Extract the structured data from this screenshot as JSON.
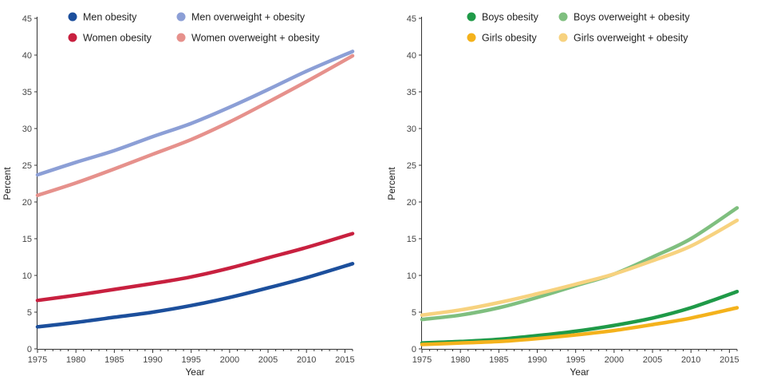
{
  "chart_data": [
    {
      "type": "line",
      "title": "",
      "xlabel": "Year",
      "ylabel": "Percent",
      "xlim": [
        1975,
        2016
      ],
      "ylim": [
        0,
        45
      ],
      "xticks": [
        1975,
        1980,
        1985,
        1990,
        1995,
        2000,
        2005,
        2010,
        2015
      ],
      "yticks": [
        0,
        5,
        10,
        15,
        20,
        25,
        30,
        35,
        40,
        45
      ],
      "grid": false,
      "legend": "top",
      "series": [
        {
          "name": "Men obesity",
          "color": "#1c4f9c",
          "x": [
            1975,
            1980,
            1985,
            1990,
            1995,
            2000,
            2005,
            2010,
            2016
          ],
          "y": [
            3.0,
            3.6,
            4.3,
            5.0,
            5.9,
            7.0,
            8.3,
            9.7,
            11.6
          ]
        },
        {
          "name": "Women obesity",
          "color": "#c8203f",
          "x": [
            1975,
            1980,
            1985,
            1990,
            1995,
            2000,
            2005,
            2010,
            2016
          ],
          "y": [
            6.6,
            7.3,
            8.1,
            8.9,
            9.8,
            11.0,
            12.4,
            13.8,
            15.7
          ]
        },
        {
          "name": "Men overweight + obesity",
          "color": "#8c9fd6",
          "x": [
            1975,
            1980,
            1985,
            1990,
            1995,
            2000,
            2005,
            2010,
            2016
          ],
          "y": [
            23.7,
            25.4,
            27.0,
            28.9,
            30.7,
            32.9,
            35.3,
            37.8,
            40.5
          ]
        },
        {
          "name": "Women overweight + obesity",
          "color": "#e6918c",
          "x": [
            1975,
            1980,
            1985,
            1990,
            1995,
            2000,
            2005,
            2010,
            2016
          ],
          "y": [
            20.9,
            22.6,
            24.5,
            26.5,
            28.5,
            30.9,
            33.6,
            36.4,
            39.9
          ]
        }
      ]
    },
    {
      "type": "line",
      "title": "",
      "xlabel": "Year",
      "ylabel": "Percent",
      "xlim": [
        1975,
        2016
      ],
      "ylim": [
        0,
        45
      ],
      "xticks": [
        1975,
        1980,
        1985,
        1990,
        1995,
        2000,
        2005,
        2010,
        2015
      ],
      "yticks": [
        0,
        5,
        10,
        15,
        20,
        25,
        30,
        35,
        40,
        45
      ],
      "grid": false,
      "legend": "top",
      "series": [
        {
          "name": "Boys obesity",
          "color": "#1f9a48",
          "x": [
            1975,
            1980,
            1985,
            1990,
            1995,
            2000,
            2005,
            2010,
            2016
          ],
          "y": [
            0.8,
            1.0,
            1.3,
            1.8,
            2.4,
            3.2,
            4.2,
            5.6,
            7.8
          ]
        },
        {
          "name": "Girls obesity",
          "color": "#f4b21c",
          "x": [
            1975,
            1980,
            1985,
            1990,
            1995,
            2000,
            2005,
            2010,
            2016
          ],
          "y": [
            0.6,
            0.8,
            1.0,
            1.4,
            1.9,
            2.5,
            3.3,
            4.2,
            5.6
          ]
        },
        {
          "name": "Boys overweight + obesity",
          "color": "#7fbf7f",
          "x": [
            1975,
            1980,
            1985,
            1990,
            1995,
            2000,
            2005,
            2010,
            2016
          ],
          "y": [
            4.0,
            4.6,
            5.6,
            7.0,
            8.6,
            10.2,
            12.5,
            15.0,
            19.2
          ]
        },
        {
          "name": "Girls overweight + obesity",
          "color": "#f7d27f",
          "x": [
            1975,
            1980,
            1985,
            1990,
            1995,
            2000,
            2005,
            2010,
            2016
          ],
          "y": [
            4.6,
            5.3,
            6.3,
            7.5,
            8.8,
            10.2,
            12.0,
            14.0,
            17.5
          ]
        }
      ]
    }
  ]
}
